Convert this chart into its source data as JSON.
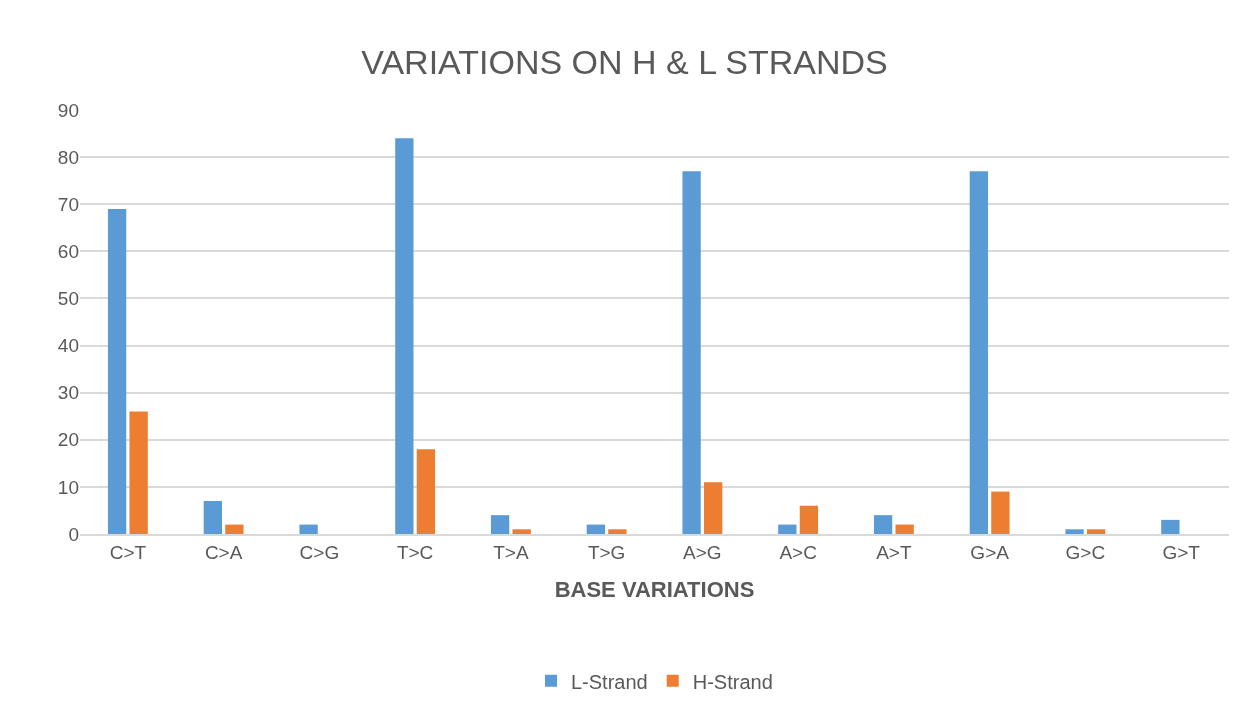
{
  "chart_data": {
    "type": "bar",
    "title": "VARIATIONS ON H & L STRANDS",
    "xlabel": "BASE VARIATIONS",
    "categories": [
      "C>T",
      "C>A",
      "C>G",
      "T>C",
      "T>A",
      "T>G",
      "A>G",
      "A>C",
      "A>T",
      "G>A",
      "G>C",
      "G>T"
    ],
    "series": [
      {
        "name": "L-Strand",
        "color": "#5b9bd5",
        "values": [
          69,
          7,
          2,
          84,
          4,
          2,
          77,
          2,
          4,
          77,
          1,
          3
        ]
      },
      {
        "name": "H-Strand",
        "color": "#ed7d31",
        "values": [
          26,
          2,
          0,
          18,
          1,
          1,
          11,
          6,
          2,
          9,
          1,
          0
        ]
      }
    ],
    "ylim": [
      0,
      90
    ],
    "yticks": [
      0,
      10,
      20,
      30,
      40,
      50,
      60,
      70,
      80,
      90
    ],
    "grid": "y",
    "legend": "bottom"
  }
}
